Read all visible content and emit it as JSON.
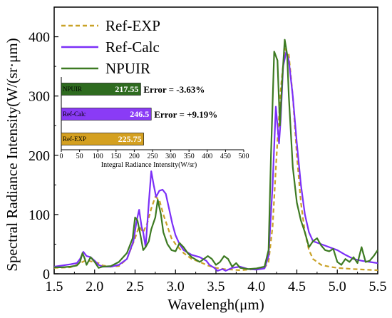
{
  "chart_data": [
    {
      "type": "line",
      "title": "",
      "xlabel": "Wavelengh(μm)",
      "ylabel": "Spectral Radiance Intensity(W/(sr·μm)",
      "xlim": [
        1.5,
        5.5
      ],
      "ylim": [
        0,
        450
      ],
      "xticks": [
        "1.5",
        "2.0",
        "2.5",
        "3.0",
        "3.5",
        "4.0",
        "4.5",
        "5.0",
        "5.5"
      ],
      "yticks": [
        "0",
        "100",
        "200",
        "300",
        "400"
      ],
      "legend_position": "top-left",
      "series": [
        {
          "name": "Ref-EXP",
          "color": "#c9a227",
          "style": "dashed",
          "points": [
            [
              1.5,
              10
            ],
            [
              1.7,
              11
            ],
            [
              1.78,
              15
            ],
            [
              1.85,
              20
            ],
            [
              1.9,
              23
            ],
            [
              1.95,
              21
            ],
            [
              2.0,
              20
            ],
            [
              2.05,
              18
            ],
            [
              2.1,
              14
            ],
            [
              2.2,
              12
            ],
            [
              2.3,
              13
            ],
            [
              2.4,
              25
            ],
            [
              2.5,
              60
            ],
            [
              2.55,
              80
            ],
            [
              2.6,
              70
            ],
            [
              2.65,
              85
            ],
            [
              2.7,
              110
            ],
            [
              2.75,
              130
            ],
            [
              2.8,
              125
            ],
            [
              2.85,
              100
            ],
            [
              2.9,
              80
            ],
            [
              2.95,
              60
            ],
            [
              3.0,
              50
            ],
            [
              3.1,
              35
            ],
            [
              3.2,
              25
            ],
            [
              3.3,
              20
            ],
            [
              3.4,
              14
            ],
            [
              3.5,
              10
            ],
            [
              3.6,
              8
            ],
            [
              3.7,
              7
            ],
            [
              3.8,
              6
            ],
            [
              3.9,
              7
            ],
            [
              4.0,
              8
            ],
            [
              4.1,
              10
            ],
            [
              4.15,
              20
            ],
            [
              4.2,
              80
            ],
            [
              4.25,
              200
            ],
            [
              4.3,
              310
            ],
            [
              4.35,
              380
            ],
            [
              4.4,
              370
            ],
            [
              4.45,
              300
            ],
            [
              4.5,
              200
            ],
            [
              4.55,
              120
            ],
            [
              4.6,
              70
            ],
            [
              4.65,
              40
            ],
            [
              4.7,
              25
            ],
            [
              4.8,
              15
            ],
            [
              4.9,
              12
            ],
            [
              5.0,
              10
            ],
            [
              5.2,
              8
            ],
            [
              5.5,
              6
            ]
          ]
        },
        {
          "name": "Ref-Calc",
          "color": "#7b2ff7",
          "style": "solid",
          "points": [
            [
              1.5,
              12
            ],
            [
              1.6,
              14
            ],
            [
              1.7,
              16
            ],
            [
              1.78,
              18
            ],
            [
              1.82,
              25
            ],
            [
              1.86,
              37
            ],
            [
              1.9,
              30
            ],
            [
              1.95,
              28
            ],
            [
              2.0,
              22
            ],
            [
              2.05,
              15
            ],
            [
              2.1,
              12
            ],
            [
              2.2,
              12
            ],
            [
              2.3,
              15
            ],
            [
              2.4,
              25
            ],
            [
              2.48,
              55
            ],
            [
              2.52,
              90
            ],
            [
              2.55,
              108
            ],
            [
              2.58,
              80
            ],
            [
              2.6,
              70
            ],
            [
              2.63,
              45
            ],
            [
              2.67,
              120
            ],
            [
              2.7,
              173
            ],
            [
              2.73,
              150
            ],
            [
              2.76,
              130
            ],
            [
              2.8,
              140
            ],
            [
              2.84,
              142
            ],
            [
              2.88,
              135
            ],
            [
              2.92,
              110
            ],
            [
              2.96,
              85
            ],
            [
              3.0,
              65
            ],
            [
              3.05,
              50
            ],
            [
              3.1,
              40
            ],
            [
              3.2,
              32
            ],
            [
              3.3,
              28
            ],
            [
              3.38,
              22
            ],
            [
              3.42,
              15
            ],
            [
              3.48,
              10
            ],
            [
              3.52,
              5
            ],
            [
              3.58,
              8
            ],
            [
              3.62,
              5
            ],
            [
              3.7,
              10
            ],
            [
              3.8,
              12
            ],
            [
              3.9,
              8
            ],
            [
              4.0,
              7
            ],
            [
              4.1,
              9
            ],
            [
              4.15,
              30
            ],
            [
              4.2,
              150
            ],
            [
              4.24,
              282
            ],
            [
              4.28,
              220
            ],
            [
              4.3,
              260
            ],
            [
              4.33,
              350
            ],
            [
              4.37,
              375
            ],
            [
              4.4,
              360
            ],
            [
              4.45,
              300
            ],
            [
              4.5,
              220
            ],
            [
              4.55,
              150
            ],
            [
              4.6,
              100
            ],
            [
              4.65,
              70
            ],
            [
              4.7,
              55
            ],
            [
              4.8,
              50
            ],
            [
              4.9,
              45
            ],
            [
              5.0,
              40
            ],
            [
              5.1,
              32
            ],
            [
              5.2,
              25
            ],
            [
              5.3,
              22
            ],
            [
              5.4,
              20
            ],
            [
              5.5,
              18
            ]
          ]
        },
        {
          "name": "NPUIR",
          "color": "#3d7a22",
          "style": "solid",
          "points": [
            [
              1.5,
              11
            ],
            [
              1.6,
              11
            ],
            [
              1.7,
              12
            ],
            [
              1.78,
              14
            ],
            [
              1.82,
              20
            ],
            [
              1.85,
              35
            ],
            [
              1.88,
              25
            ],
            [
              1.9,
              15
            ],
            [
              1.95,
              28
            ],
            [
              2.0,
              20
            ],
            [
              2.05,
              10
            ],
            [
              2.1,
              12
            ],
            [
              2.2,
              13
            ],
            [
              2.3,
              20
            ],
            [
              2.4,
              35
            ],
            [
              2.47,
              60
            ],
            [
              2.5,
              95
            ],
            [
              2.53,
              90
            ],
            [
              2.56,
              70
            ],
            [
              2.6,
              40
            ],
            [
              2.63,
              45
            ],
            [
              2.67,
              55
            ],
            [
              2.7,
              75
            ],
            [
              2.75,
              95
            ],
            [
              2.78,
              125
            ],
            [
              2.82,
              100
            ],
            [
              2.85,
              70
            ],
            [
              2.9,
              50
            ],
            [
              2.95,
              40
            ],
            [
              3.0,
              38
            ],
            [
              3.05,
              52
            ],
            [
              3.1,
              45
            ],
            [
              3.15,
              35
            ],
            [
              3.2,
              28
            ],
            [
              3.3,
              20
            ],
            [
              3.4,
              30
            ],
            [
              3.45,
              25
            ],
            [
              3.5,
              15
            ],
            [
              3.55,
              20
            ],
            [
              3.6,
              30
            ],
            [
              3.65,
              25
            ],
            [
              3.7,
              12
            ],
            [
              3.75,
              18
            ],
            [
              3.8,
              10
            ],
            [
              3.9,
              8
            ],
            [
              4.0,
              9
            ],
            [
              4.1,
              12
            ],
            [
              4.15,
              40
            ],
            [
              4.18,
              200
            ],
            [
              4.22,
              375
            ],
            [
              4.26,
              360
            ],
            [
              4.29,
              250
            ],
            [
              4.32,
              330
            ],
            [
              4.35,
              395
            ],
            [
              4.38,
              370
            ],
            [
              4.4,
              300
            ],
            [
              4.45,
              180
            ],
            [
              4.5,
              120
            ],
            [
              4.55,
              90
            ],
            [
              4.6,
              70
            ],
            [
              4.65,
              45
            ],
            [
              4.7,
              55
            ],
            [
              4.75,
              60
            ],
            [
              4.8,
              48
            ],
            [
              4.85,
              40
            ],
            [
              4.9,
              38
            ],
            [
              4.95,
              42
            ],
            [
              5.0,
              20
            ],
            [
              5.05,
              15
            ],
            [
              5.1,
              25
            ],
            [
              5.15,
              20
            ],
            [
              5.2,
              28
            ],
            [
              5.25,
              18
            ],
            [
              5.3,
              45
            ],
            [
              5.35,
              20
            ],
            [
              5.4,
              22
            ],
            [
              5.45,
              30
            ],
            [
              5.5,
              40
            ]
          ]
        }
      ]
    },
    {
      "type": "bar",
      "orientation": "horizontal",
      "xlabel": "Integral Radiance Intensity(W/sr)",
      "xlim": [
        0,
        500
      ],
      "xticks": [
        "0",
        "50",
        "100",
        "150",
        "200",
        "250",
        "300",
        "350",
        "400",
        "450",
        "500"
      ],
      "categories": [
        "NPUIR",
        "Ref-Calc",
        "Ref-EXP"
      ],
      "values": [
        217.55,
        246.5,
        225.75
      ],
      "value_labels": [
        "217.55",
        "246.5",
        "225.75"
      ],
      "colors": [
        "#2e6b1f",
        "#8a3bf6",
        "#d4a020"
      ],
      "annotations": [
        "Error = -3.63%",
        "Error = +9.19%",
        ""
      ]
    }
  ]
}
